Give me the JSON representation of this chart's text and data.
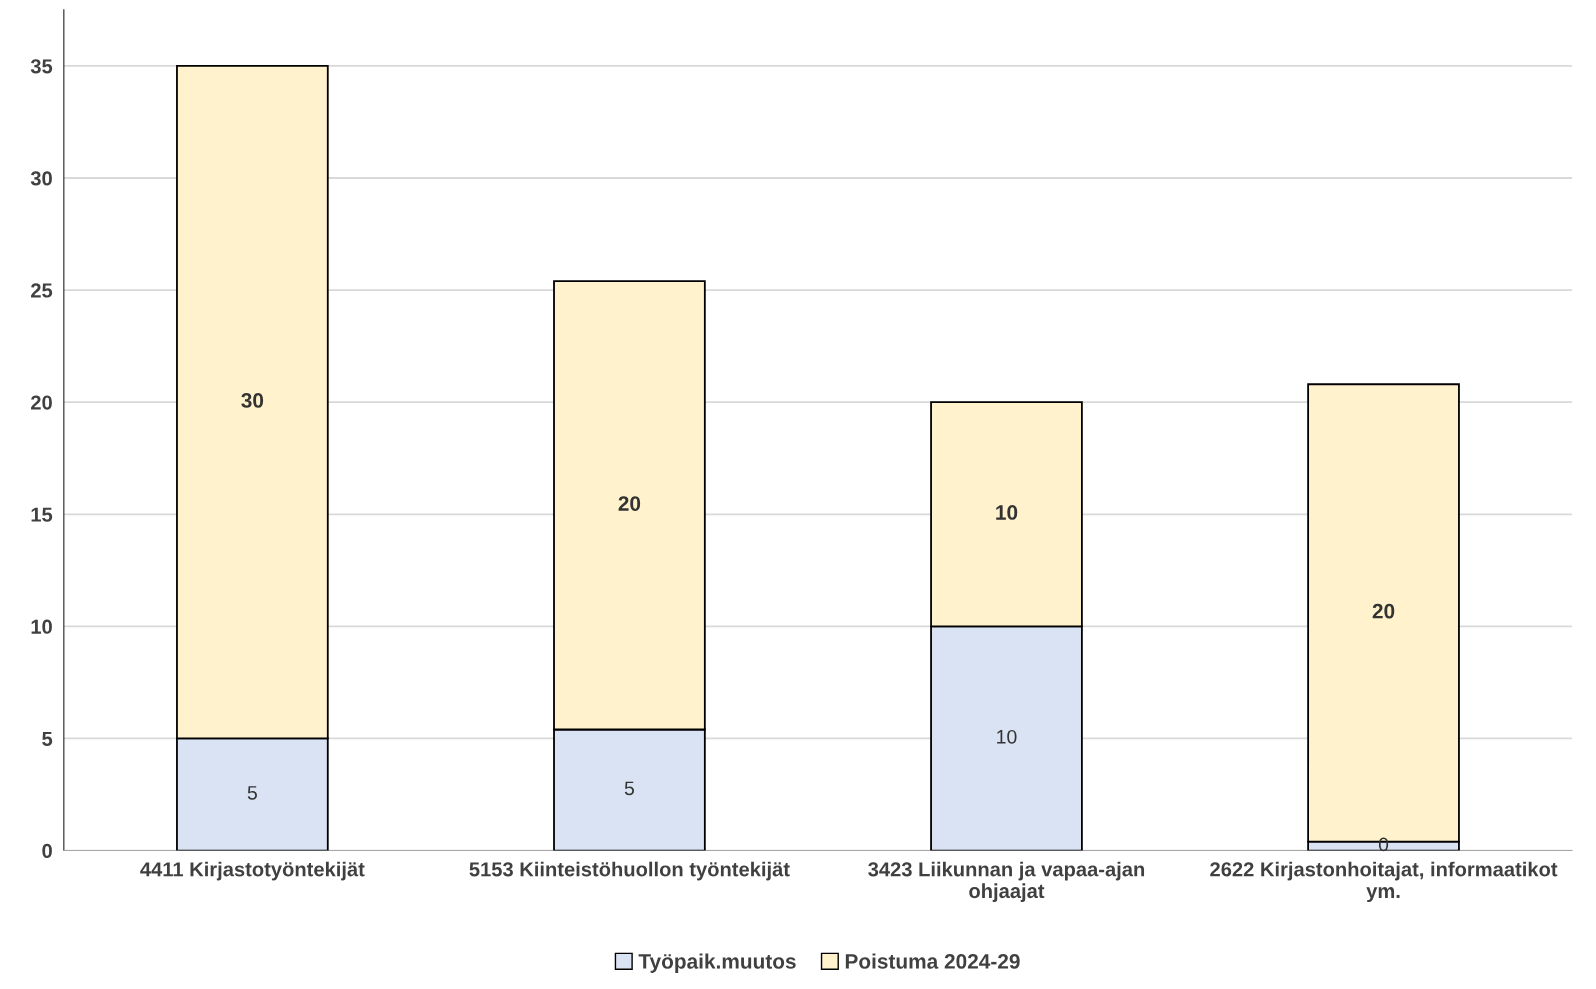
{
  "chart_data": {
    "type": "bar",
    "stacked": true,
    "categories": [
      "4411 Kirjastotyöntekijät",
      "5153 Kiinteistöhuollon työntekijät",
      "3423 Liikunnan ja vapaa-ajan\nohjaajat",
      "2622 Kirjastonhoitajat, informaatikot\nym."
    ],
    "series": [
      {
        "name": "Työpaik.muutos",
        "color": "#dae3f3",
        "values": [
          5,
          5.4,
          10,
          0.4
        ],
        "value_labels": [
          "5",
          "5",
          "10",
          "0"
        ]
      },
      {
        "name": "Poistuma 2024-29",
        "color": "#fff2cc",
        "values": [
          30,
          20,
          10,
          20.4
        ],
        "value_labels": [
          "30",
          "20",
          "10",
          "20"
        ]
      }
    ],
    "ylim": [
      0,
      37.5
    ],
    "yticks": [
      0,
      5,
      10,
      15,
      20,
      25,
      30,
      35
    ],
    "grid": "y",
    "legend": "bottom"
  }
}
